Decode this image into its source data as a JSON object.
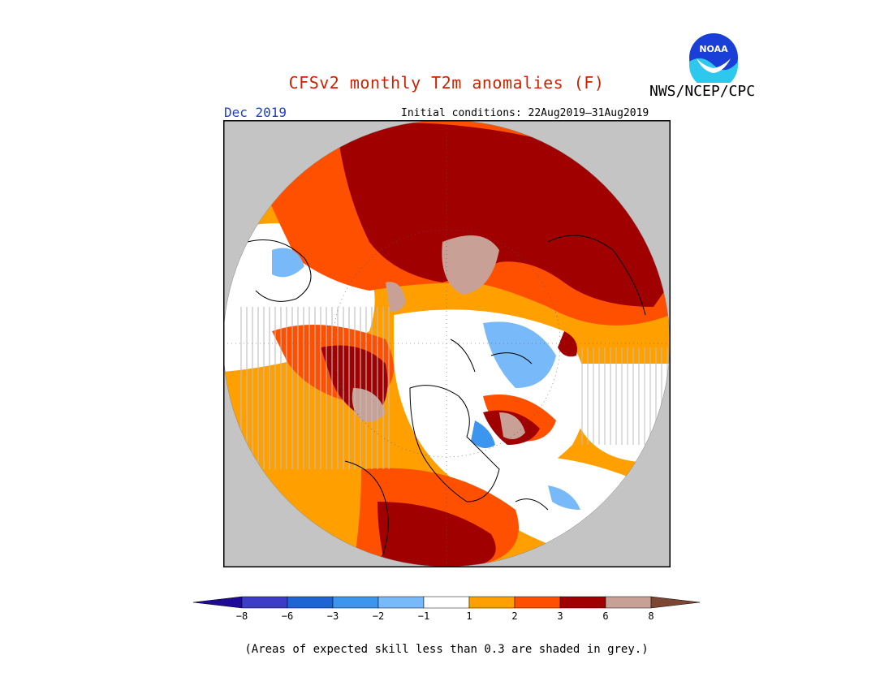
{
  "header": {
    "title": "CFSv2 monthly T2m anomalies (F)",
    "organization": "NWS/NCEP/CPC",
    "logo_text": "NOAA",
    "month": "Dec 2019",
    "initial_conditions": "Initial conditions: 22Aug2019–31Aug2019"
  },
  "legend": {
    "ticks": [
      "−8",
      "−6",
      "−3",
      "−2",
      "−1",
      "1",
      "2",
      "3",
      "6",
      "8"
    ],
    "colors": [
      "#1e0a96",
      "#3c3cc8",
      "#1e64d2",
      "#3c96f0",
      "#78b9fa",
      "#ffffff",
      "#ffa000",
      "#ff5000",
      "#a00000",
      "#c8a096",
      "#7d4632"
    ]
  },
  "footnote": "(Areas of expected skill less than 0.3 are shaded in grey.)"
}
